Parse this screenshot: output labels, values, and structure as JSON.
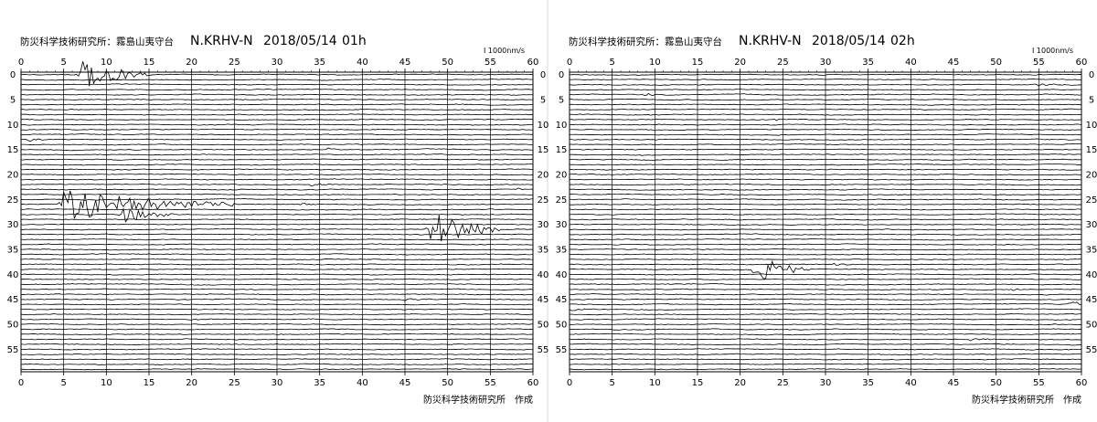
{
  "panels": [
    {
      "institute_header": "防災科学技術研究所：霧島山夷守台",
      "station": "N.KRHV-N",
      "date": "2018/05/14",
      "hour": "01h",
      "scale_label": "I 1000nm/s",
      "footer": "防災科学技術研究所　作成"
    },
    {
      "institute_header": "防災科学技術研究所：霧島山夷守台",
      "station": "N.KRHV-N",
      "date": "2018/05/14",
      "hour": "02h",
      "scale_label": "I 1000nm/s",
      "footer": "防災科学技術研究所　作成"
    }
  ],
  "chart_data": [
    {
      "type": "line",
      "title": "N.KRHV-N 2018/05/14 01h",
      "xlabel": "",
      "ylabel": "",
      "x_ticks": [
        0,
        5,
        10,
        15,
        20,
        25,
        30,
        35,
        40,
        45,
        50,
        55,
        60
      ],
      "y_ticks": [
        0,
        5,
        10,
        15,
        20,
        25,
        30,
        35,
        40,
        45,
        50,
        55
      ],
      "xlim": [
        0,
        60
      ],
      "ylim": [
        0,
        60
      ],
      "trace_count": 60,
      "trace_color": "#000000",
      "grid": true,
      "events": [
        {
          "minute": 0,
          "second": 7,
          "duration": 8,
          "amplitude": 4.5
        },
        {
          "minute": 26,
          "second": 5,
          "duration": 20,
          "amplitude": 4.0
        },
        {
          "minute": 28,
          "second": 12,
          "duration": 6,
          "amplitude": 2.2
        },
        {
          "minute": 31,
          "second": 48,
          "duration": 8,
          "amplitude": 5.5
        },
        {
          "minute": 13,
          "second": 1,
          "duration": 3,
          "amplitude": 0.5
        },
        {
          "minute": 15,
          "second": 36,
          "duration": 3,
          "amplitude": 0.4
        },
        {
          "minute": 22,
          "second": 34,
          "duration": 4,
          "amplitude": 0.4
        },
        {
          "minute": 23,
          "second": 58,
          "duration": 2,
          "amplitude": 0.3
        },
        {
          "minute": 26,
          "second": 33,
          "duration": 3,
          "amplitude": 0.3
        },
        {
          "minute": 35,
          "second": 3,
          "duration": 3,
          "amplitude": 0.3
        },
        {
          "minute": 45,
          "second": 45,
          "duration": 4,
          "amplitude": 0.3
        }
      ]
    },
    {
      "type": "line",
      "title": "N.KRHV-N 2018/05/14 02h",
      "xlabel": "",
      "ylabel": "",
      "x_ticks": [
        0,
        5,
        10,
        15,
        20,
        25,
        30,
        35,
        40,
        45,
        50,
        55,
        60
      ],
      "y_ticks": [
        0,
        5,
        10,
        15,
        20,
        25,
        30,
        35,
        40,
        45,
        50,
        55
      ],
      "xlim": [
        0,
        60
      ],
      "ylim": [
        0,
        60
      ],
      "trace_count": 60,
      "trace_color": "#000000",
      "grid": true,
      "events": [
        {
          "minute": 39,
          "second": 22,
          "duration": 6,
          "amplitude": 3.5
        },
        {
          "minute": 2,
          "second": 55,
          "duration": 3,
          "amplitude": 0.4
        },
        {
          "minute": 4,
          "second": 9,
          "duration": 3,
          "amplitude": 0.4
        },
        {
          "minute": 9,
          "second": 24,
          "duration": 3,
          "amplitude": 0.3
        },
        {
          "minute": 38,
          "second": 31,
          "duration": 3,
          "amplitude": 0.3
        },
        {
          "minute": 43,
          "second": 52,
          "duration": 3,
          "amplitude": 0.3
        },
        {
          "minute": 47,
          "second": 0,
          "duration": 3,
          "amplitude": 0.5
        },
        {
          "minute": 46,
          "second": 59,
          "duration": 2,
          "amplitude": 0.8
        },
        {
          "minute": 53,
          "second": 47,
          "duration": 3,
          "amplitude": 0.4
        }
      ]
    }
  ]
}
